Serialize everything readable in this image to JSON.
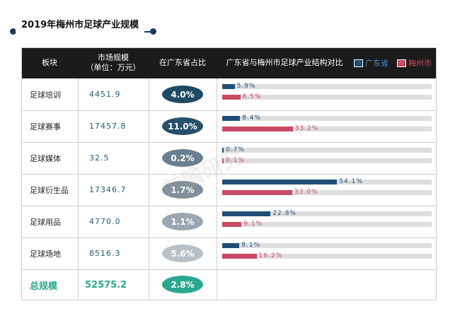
{
  "title": "2019年梅州市足球产业规模",
  "header": {
    "col1": "板块",
    "col2_line1": "市场规模",
    "col2_line2": "（单位：万元）",
    "col3": "在广东省占比",
    "col4": "广东省与梅州市足球产业结构对比",
    "legend_gd": "广东省",
    "legend_mz": "梅州市"
  },
  "colors": {
    "guangdong": "#1f4e79",
    "meizhou": "#c94a63",
    "header_bg": "#1b1b1b",
    "total": "#2aa88f"
  },
  "watermark": "前瞻研究",
  "chart_data": {
    "type": "table",
    "title": "2019年梅州市足球产业规模",
    "series": [
      {
        "name": "广东省",
        "values": [
          5.9,
          8.4,
          0.7,
          54.1,
          22.8,
          8.1
        ]
      },
      {
        "name": "梅州市",
        "values": [
          8.5,
          33.2,
          0.1,
          33.0,
          9.1,
          16.2
        ]
      }
    ],
    "rows": [
      {
        "category": "足球培训",
        "market_size": "4451.9",
        "share": "4.0%",
        "pill_color": "#1f4a63",
        "gd": 5.9,
        "mz": 8.5,
        "gd_label": "5.9%",
        "mz_label": "8.5%"
      },
      {
        "category": "足球赛事",
        "market_size": "17457.8",
        "share": "11.0%",
        "pill_color": "#274f69",
        "gd": 8.4,
        "mz": 33.2,
        "gd_label": "8.4%",
        "mz_label": "33.2%"
      },
      {
        "category": "足球媒体",
        "market_size": "32.5",
        "share": "0.2%",
        "pill_color": "#6a8090",
        "gd": 0.7,
        "mz": 0.1,
        "gd_label": "0.7%",
        "mz_label": "0.1%"
      },
      {
        "category": "足球衍生品",
        "market_size": "17346.7",
        "share": "1.7%",
        "pill_color": "#7f8f9c",
        "gd": 54.1,
        "mz": 33.0,
        "gd_label": "54.1%",
        "mz_label": "33.0%"
      },
      {
        "category": "足球用品",
        "market_size": "4770.0",
        "share": "1.1%",
        "pill_color": "#9aa6b1",
        "gd": 22.8,
        "mz": 9.1,
        "gd_label": "22.8%",
        "mz_label": "9.1%"
      },
      {
        "category": "足球场地",
        "market_size": "8516.3",
        "share": "5.6%",
        "pill_color": "#b9c1c8",
        "gd": 8.1,
        "mz": 16.2,
        "gd_label": "8.1%",
        "mz_label": "16.2%"
      }
    ],
    "total": {
      "category": "总规模",
      "market_size": "52575.2",
      "share": "2.8%",
      "pill_color": "#2aa88f"
    },
    "xlim": [
      0,
      100
    ]
  }
}
